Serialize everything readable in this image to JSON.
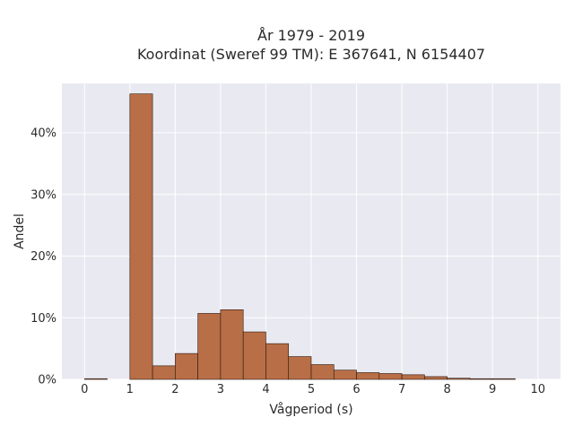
{
  "chart_data": {
    "type": "bar",
    "title_lines": [
      "År 1979 - 2019",
      "Koordinat (Sweref 99 TM): E 367641, N 6154407"
    ],
    "xlabel": "Vågperiod (s)",
    "ylabel": "Andel",
    "x_ticks": [
      "0",
      "1",
      "2",
      "3",
      "4",
      "5",
      "6",
      "7",
      "8",
      "9",
      "10"
    ],
    "y_ticks": [
      "0%",
      "10%",
      "20%",
      "30%",
      "40%"
    ],
    "xlim": [
      -0.5,
      10.5
    ],
    "ylim": [
      0,
      48
    ],
    "bin_width": 0.5,
    "bars": [
      {
        "x_start": 0.0,
        "value": 0.1
      },
      {
        "x_start": 0.5,
        "value": 0.0
      },
      {
        "x_start": 1.0,
        "value": 46.3
      },
      {
        "x_start": 1.5,
        "value": 2.2
      },
      {
        "x_start": 2.0,
        "value": 4.2
      },
      {
        "x_start": 2.5,
        "value": 10.7
      },
      {
        "x_start": 3.0,
        "value": 11.3
      },
      {
        "x_start": 3.5,
        "value": 7.7
      },
      {
        "x_start": 4.0,
        "value": 5.8
      },
      {
        "x_start": 4.5,
        "value": 3.7
      },
      {
        "x_start": 5.0,
        "value": 2.4
      },
      {
        "x_start": 5.5,
        "value": 1.5
      },
      {
        "x_start": 6.0,
        "value": 1.1
      },
      {
        "x_start": 6.5,
        "value": 0.95
      },
      {
        "x_start": 7.0,
        "value": 0.75
      },
      {
        "x_start": 7.5,
        "value": 0.45
      },
      {
        "x_start": 8.0,
        "value": 0.2
      },
      {
        "x_start": 8.5,
        "value": 0.1
      },
      {
        "x_start": 9.0,
        "value": 0.05
      }
    ],
    "bar_color": "#b86e46",
    "plot_background": "#e9e9f1",
    "grid": true
  }
}
